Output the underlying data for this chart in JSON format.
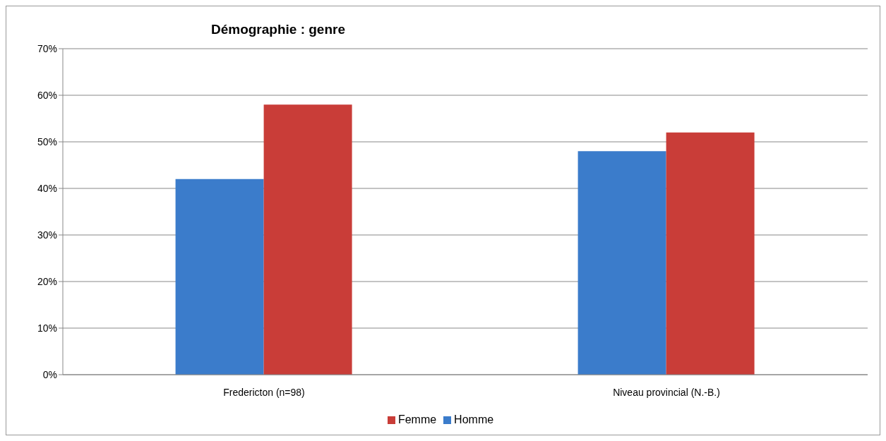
{
  "chart_data": {
    "type": "bar",
    "title": "Démographie : genre",
    "categories": [
      "Fredericton (n=98)",
      "Niveau provincial (N.-B.)"
    ],
    "series": [
      {
        "name": "Homme",
        "color": "#3b7ccb",
        "values": [
          42,
          48
        ]
      },
      {
        "name": "Femme",
        "color": "#c93d38",
        "values": [
          58,
          52
        ]
      }
    ],
    "ylim": [
      0,
      70
    ],
    "yticks": [
      {
        "value": 0,
        "label": "0%"
      },
      {
        "value": 10,
        "label": "10%"
      },
      {
        "value": 20,
        "label": "20%"
      },
      {
        "value": 30,
        "label": "30%"
      },
      {
        "value": 40,
        "label": "40%"
      },
      {
        "value": 50,
        "label": "50%"
      },
      {
        "value": 60,
        "label": "60%"
      },
      {
        "value": 70,
        "label": "70%"
      }
    ],
    "grid": "y",
    "legend": "bottom"
  }
}
